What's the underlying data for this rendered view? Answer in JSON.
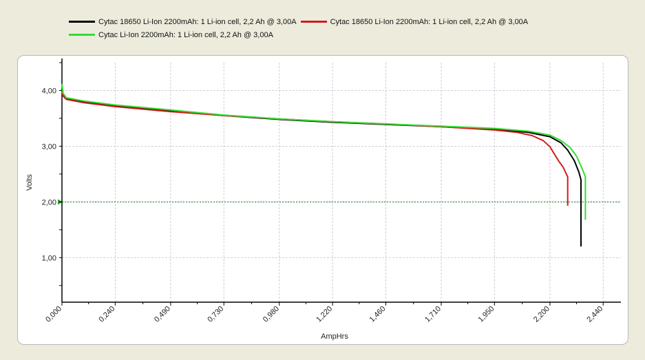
{
  "chart_data": {
    "type": "line",
    "xlabel": "AmpHrs",
    "ylabel": "Volts",
    "xlim": [
      0,
      2.52
    ],
    "ylim": [
      0.2,
      4.5
    ],
    "x_ticks": [
      "0,000",
      "0,240",
      "0,490",
      "0,730",
      "0,980",
      "1,220",
      "1,460",
      "1,710",
      "1,950",
      "2,200",
      "2,440"
    ],
    "x_tick_values": [
      0,
      0.24,
      0.49,
      0.73,
      0.98,
      1.22,
      1.46,
      1.71,
      1.95,
      2.2,
      2.44
    ],
    "y_ticks": [
      "1,00",
      "2,00",
      "3,00",
      "4,00"
    ],
    "y_tick_values": [
      1,
      2,
      3,
      4
    ],
    "grid": true,
    "legend_position": "top",
    "cutoff_voltage": 2.0,
    "series": [
      {
        "name": "Cytac 18650 Li-Ion 2200mAh: 1 Li-ion cell, 2,2 Ah @ 3,00A",
        "color": "#000000",
        "x": [
          0,
          0.005,
          0.02,
          0.1,
          0.24,
          0.49,
          0.73,
          0.98,
          1.22,
          1.46,
          1.71,
          1.95,
          2.1,
          2.2,
          2.25,
          2.28,
          2.31,
          2.33,
          2.34,
          2.34
        ],
        "y": [
          4.02,
          3.92,
          3.85,
          3.79,
          3.72,
          3.63,
          3.55,
          3.48,
          3.43,
          3.39,
          3.35,
          3.3,
          3.25,
          3.17,
          3.06,
          2.93,
          2.74,
          2.54,
          2.4,
          1.2
        ]
      },
      {
        "name": "Cytac 18650 Li-Ion 2200mAh: 1 Li-ion cell, 2,2 Ah @ 3,00A",
        "color": "#d41a1a",
        "x": [
          0,
          0.005,
          0.02,
          0.1,
          0.24,
          0.49,
          0.73,
          0.98,
          1.22,
          1.46,
          1.71,
          1.95,
          2.05,
          2.12,
          2.17,
          2.2,
          2.22,
          2.24,
          2.26,
          2.28,
          2.28
        ],
        "y": [
          4.0,
          3.9,
          3.84,
          3.78,
          3.71,
          3.62,
          3.55,
          3.49,
          3.44,
          3.4,
          3.35,
          3.29,
          3.25,
          3.19,
          3.1,
          2.99,
          2.86,
          2.73,
          2.62,
          2.45,
          1.93
        ]
      },
      {
        "name": "Cytac Li-Ion 2200mAh: 1 Li-ion cell, 2,2 Ah @ 3,00A",
        "color": "#33dd33",
        "x": [
          0,
          0.005,
          0.02,
          0.1,
          0.24,
          0.49,
          0.73,
          0.98,
          1.22,
          1.46,
          1.71,
          1.95,
          2.1,
          2.2,
          2.25,
          2.29,
          2.32,
          2.345,
          2.36,
          2.36
        ],
        "y": [
          4.12,
          3.95,
          3.87,
          3.81,
          3.74,
          3.65,
          3.56,
          3.49,
          3.44,
          3.4,
          3.36,
          3.32,
          3.27,
          3.2,
          3.1,
          2.98,
          2.82,
          2.6,
          2.45,
          1.68
        ]
      }
    ]
  }
}
